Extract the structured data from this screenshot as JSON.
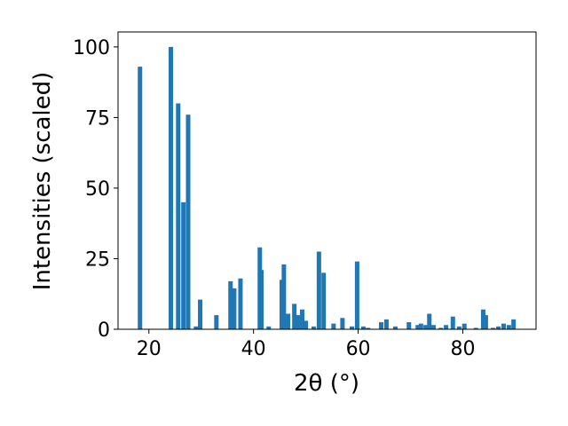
{
  "chart_data": {
    "type": "bar",
    "xlabel": "2θ (°)",
    "ylabel": "Intensities (scaled)",
    "color": "#1f77b4",
    "x": [
      18.3,
      24.2,
      25.6,
      26.6,
      27.5,
      29.0,
      29.8,
      32.9,
      35.6,
      36.3,
      37.5,
      41.2,
      41.5,
      42.9,
      45.4,
      45.8,
      46.6,
      47.8,
      48.5,
      49.3,
      50.0,
      51.5,
      52.5,
      53.4,
      55.3,
      57.0,
      58.8,
      59.8,
      61.0,
      61.9,
      64.4,
      65.4,
      67.1,
      69.7,
      71.4,
      72.0,
      72.9,
      73.6,
      74.4,
      75.8,
      76.8,
      78.1,
      79.3,
      80.3,
      82.5,
      83.9,
      84.4,
      85.8,
      86.8,
      87.8,
      88.8,
      89.7
    ],
    "values": [
      93,
      100,
      80,
      45,
      76,
      1,
      10.5,
      5,
      17,
      14.5,
      18,
      29,
      21,
      1,
      17.5,
      23,
      5.5,
      9,
      5,
      7,
      3,
      1,
      27.5,
      20,
      2,
      4,
      1,
      24,
      1,
      0.5,
      2.5,
      3.5,
      1,
      2.5,
      1.5,
      2,
      1.5,
      5.5,
      1.5,
      0.5,
      1.5,
      4.5,
      1,
      2,
      0.5,
      7,
      5,
      0.5,
      1,
      2,
      1.5,
      3.5
    ],
    "xlim": [
      14.1,
      94
    ],
    "ylim": [
      0,
      105.3
    ],
    "xticks": [
      20,
      40,
      60,
      80
    ],
    "yticks": [
      0,
      25,
      50,
      75,
      100
    ]
  }
}
